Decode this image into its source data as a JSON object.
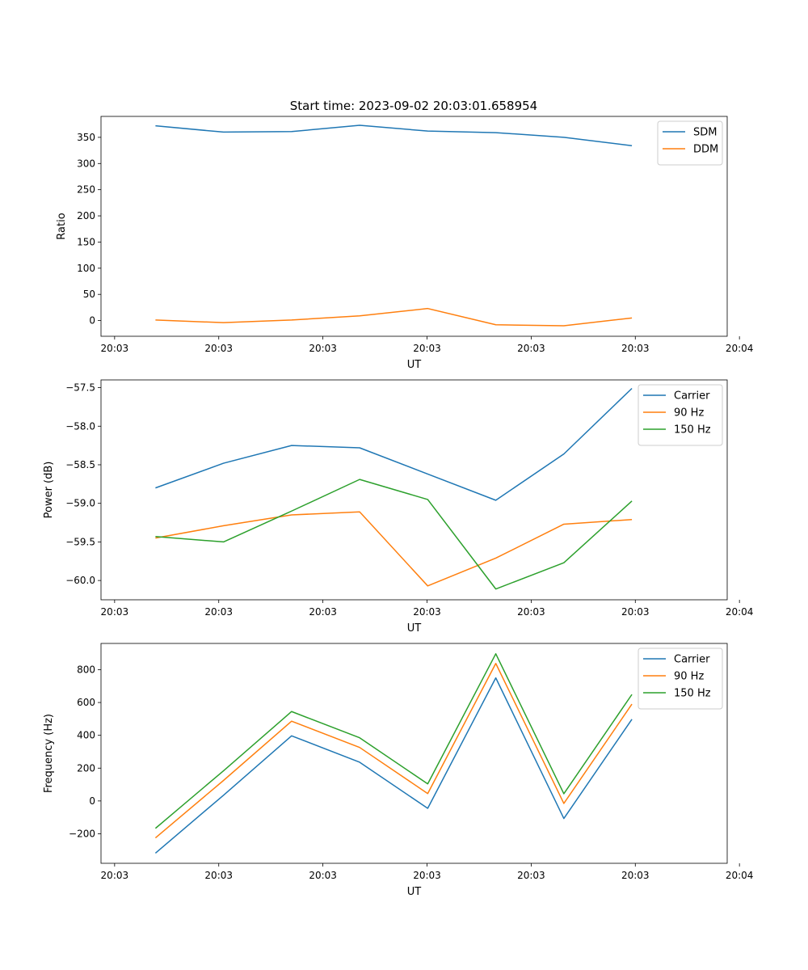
{
  "figure": {
    "title": "Start time: 2023-09-02 20:03:01.658954"
  },
  "colors": {
    "blue": "#1f77b4",
    "orange": "#ff7f0e",
    "green": "#2ca02c"
  },
  "chart_data": [
    {
      "type": "line",
      "title": "Start time: 2023-09-02 20:03:01.658954",
      "xlabel": "UT",
      "ylabel": "Ratio",
      "x": [
        1,
        2,
        3,
        4,
        5,
        6,
        7,
        8
      ],
      "xlim": [
        0.2,
        9.4
      ],
      "xticks": [
        0.4,
        1.93,
        3.46,
        4.99,
        6.52,
        8.05,
        9.58
      ],
      "xtick_labels": [
        "20:03",
        "20:03",
        "20:03",
        "20:03",
        "20:03",
        "20:03",
        "20:04"
      ],
      "ylim": [
        -30,
        390
      ],
      "yticks": [
        0,
        50,
        100,
        150,
        200,
        250,
        300,
        350
      ],
      "ytick_labels": [
        "0",
        "50",
        "100",
        "150",
        "200",
        "250",
        "300",
        "350"
      ],
      "legend": "top-right",
      "series": [
        {
          "name": "SDM",
          "color": "#1f77b4",
          "values": [
            372,
            360,
            361,
            373,
            362,
            359,
            350,
            334
          ]
        },
        {
          "name": "DDM",
          "color": "#ff7f0e",
          "values": [
            1,
            -4,
            1,
            9,
            23,
            -8,
            -10,
            5
          ]
        }
      ]
    },
    {
      "type": "line",
      "title": "",
      "xlabel": "UT",
      "ylabel": "Power (dB)",
      "x": [
        1,
        2,
        3,
        4,
        5,
        6,
        7,
        8
      ],
      "xlim": [
        0.2,
        9.4
      ],
      "xticks": [
        0.4,
        1.93,
        3.46,
        4.99,
        6.52,
        8.05,
        9.58
      ],
      "xtick_labels": [
        "20:03",
        "20:03",
        "20:03",
        "20:03",
        "20:03",
        "20:03",
        "20:04"
      ],
      "ylim": [
        -60.25,
        -57.4
      ],
      "yticks": [
        -60.0,
        -59.5,
        -59.0,
        -58.5,
        -58.0,
        -57.5
      ],
      "ytick_labels": [
        "−60.0",
        "−59.5",
        "−59.0",
        "−58.5",
        "−58.0",
        "−57.5"
      ],
      "legend": "top-right",
      "series": [
        {
          "name": "Carrier",
          "color": "#1f77b4",
          "values": [
            -58.8,
            -58.48,
            -58.25,
            -58.28,
            -58.62,
            -58.96,
            -58.36,
            -57.51
          ]
        },
        {
          "name": "90 Hz",
          "color": "#ff7f0e",
          "values": [
            -59.45,
            -59.29,
            -59.15,
            -59.11,
            -60.07,
            -59.71,
            -59.27,
            -59.21
          ]
        },
        {
          "name": "150 Hz",
          "color": "#2ca02c",
          "values": [
            -59.43,
            -59.5,
            -59.1,
            -58.69,
            -58.95,
            -60.11,
            -59.77,
            -58.97
          ]
        }
      ]
    },
    {
      "type": "line",
      "title": "",
      "xlabel": "UT",
      "ylabel": "Frequency (Hz)",
      "x": [
        1,
        2,
        3,
        4,
        5,
        6,
        7,
        8
      ],
      "xlim": [
        0.2,
        9.4
      ],
      "xticks": [
        0.4,
        1.93,
        3.46,
        4.99,
        6.52,
        8.05,
        9.58
      ],
      "xtick_labels": [
        "20:03",
        "20:03",
        "20:03",
        "20:03",
        "20:03",
        "20:03",
        "20:04"
      ],
      "ylim": [
        -380,
        960
      ],
      "yticks": [
        -200,
        0,
        200,
        400,
        600,
        800
      ],
      "ytick_labels": [
        "−200",
        "0",
        "200",
        "400",
        "600",
        "800"
      ],
      "legend": "top-right",
      "series": [
        {
          "name": "Carrier",
          "color": "#1f77b4",
          "values": [
            -318,
            35,
            397,
            236,
            -45,
            750,
            -107,
            498
          ]
        },
        {
          "name": "90 Hz",
          "color": "#ff7f0e",
          "values": [
            -225,
            125,
            486,
            326,
            45,
            838,
            -15,
            590
          ]
        },
        {
          "name": "150 Hz",
          "color": "#2ca02c",
          "values": [
            -167,
            184,
            545,
            385,
            104,
            897,
            44,
            649
          ]
        }
      ]
    }
  ]
}
